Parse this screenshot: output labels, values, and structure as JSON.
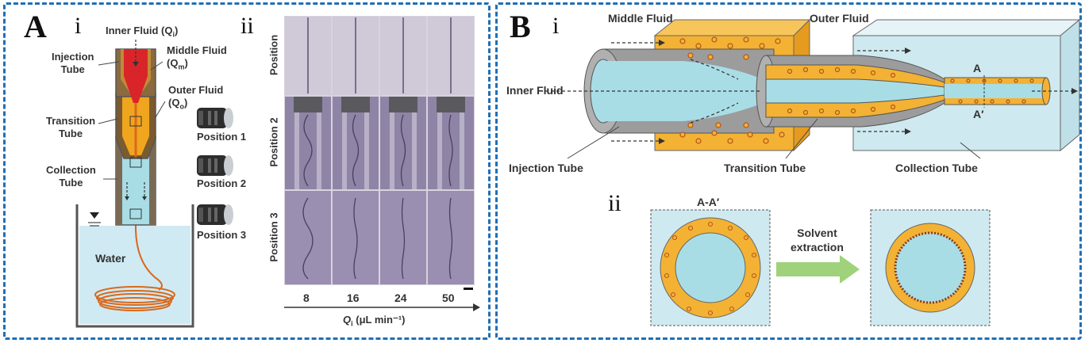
{
  "panel_a": {
    "letter": "A",
    "sub_i": "i",
    "sub_ii": "ii",
    "inner_fluid": "Inner Fluid (Q",
    "inner_sub": "i",
    "injection_tube": [
      "Injection",
      "Tube"
    ],
    "middle_fluid": "Middle Fluid",
    "middle_q": "(Q",
    "middle_sub": "m",
    "outer_fluid": "Outer Fluid",
    "outer_q": "(Q",
    "outer_sub": "o",
    "transition_tube": [
      "Transition",
      "Tube"
    ],
    "collection_tube": [
      "Collection",
      "Tube"
    ],
    "water": "Water",
    "positions": [
      "Position 1",
      "Position 2",
      "Position 3"
    ],
    "row_labels": [
      "Position",
      "Position 2",
      "Position 3"
    ],
    "flow_values": [
      "8",
      "16",
      "24",
      "50"
    ],
    "axis_label": "Q",
    "axis_sub": "i",
    "axis_unit": "(μL min⁻¹)"
  },
  "panel_b": {
    "letter": "B",
    "sub_i": "i",
    "sub_ii": "ii",
    "middle_fluid": "Middle Fluid",
    "outer_fluid": "Outer Fluid",
    "inner_fluid": "Inner Fluid",
    "point_a": "A",
    "point_a_prime": "A′",
    "injection_tube": "Injection Tube",
    "transition_tube": "Transition Tube",
    "collection_tube": "Collection Tube",
    "section": "A-A′",
    "solvent": [
      "Solvent",
      "extraction"
    ]
  },
  "colors": {
    "border": "#1f6fb5",
    "inner_red": "#d9252a",
    "shell_orange": "#f0a51f",
    "tube_blue": "#a9dde6",
    "tube_gray": "#9a9a9a",
    "arrow_green": "#9fd27a"
  }
}
